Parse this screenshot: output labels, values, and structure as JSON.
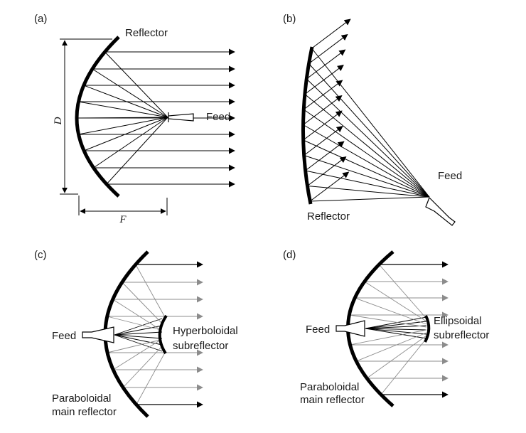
{
  "colors": {
    "ink": "#000000",
    "grey_ray": "#8c8c8c",
    "background": "#ffffff"
  },
  "panel_a": {
    "tag": "(a)",
    "reflector_label": "Reflector",
    "feed_label": "Feed",
    "d_label": "D",
    "f_label": "F"
  },
  "panel_b": {
    "tag": "(b)",
    "feed_label": "Feed",
    "reflector_label": "Reflector"
  },
  "panel_c": {
    "tag": "(c)",
    "feed_label": "Feed",
    "sub_label_1": "Hyperboloidal",
    "sub_label_2": "subreflector",
    "main_label_1": "Paraboloidal",
    "main_label_2": "main reflector"
  },
  "panel_d": {
    "tag": "(d)",
    "feed_label": "Feed",
    "sub_label_1": "Ellipsoidal",
    "sub_label_2": "subreflector",
    "main_label_1": "Paraboloidal",
    "main_label_2": "main reflector"
  }
}
